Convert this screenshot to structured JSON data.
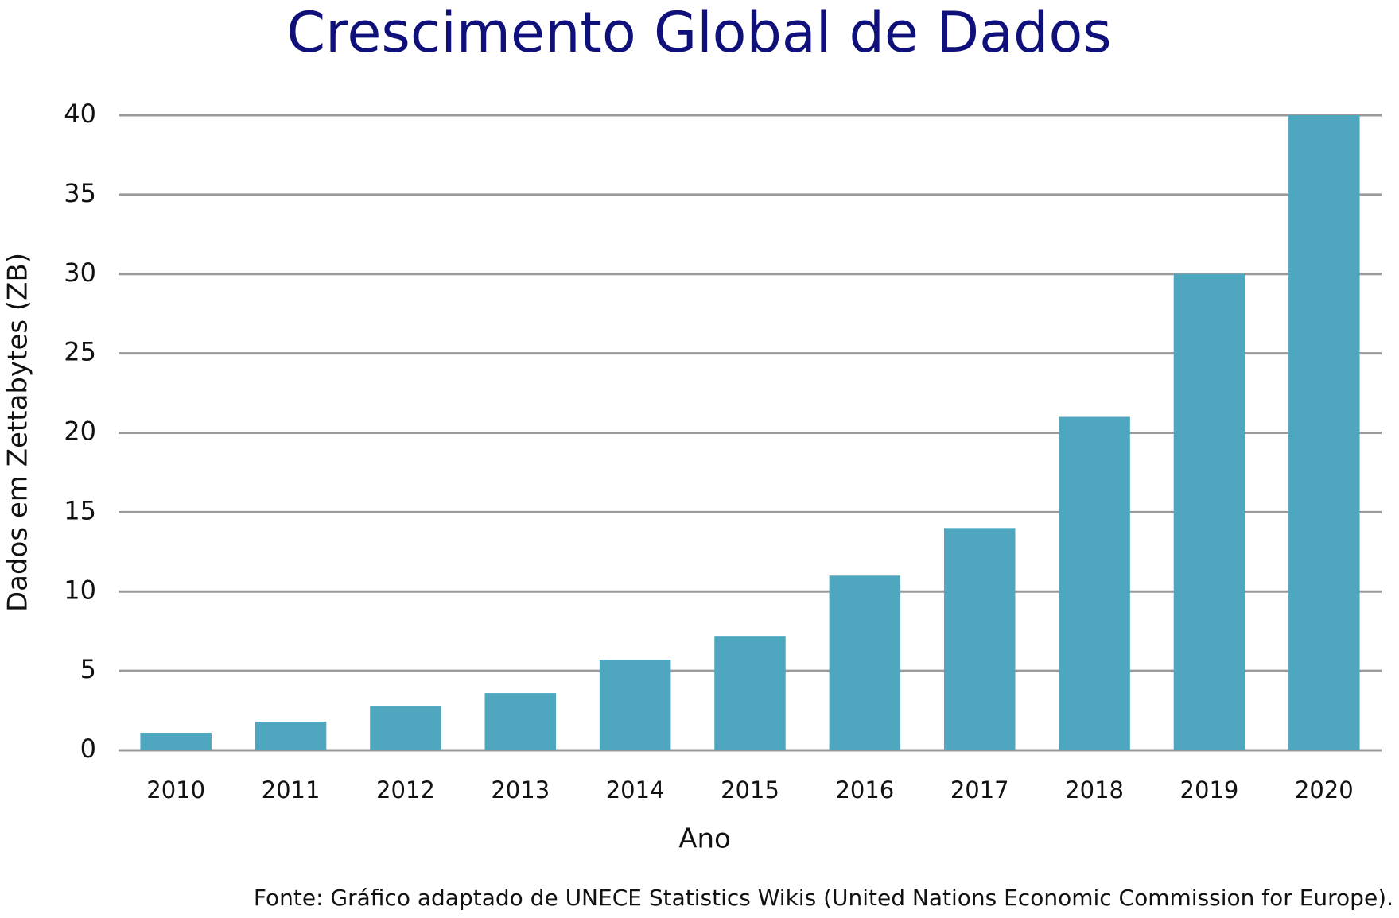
{
  "chart_data": {
    "type": "bar",
    "title": "Crescimento Global de Dados",
    "x_label": "Ano",
    "y_label": "Dados em Zettabytes (ZB)",
    "source": "Fonte: Gráfico adaptado de UNECE Statistics Wikis (United Nations Economic Commission for Europe).",
    "categories": [
      "2010",
      "2011",
      "2012",
      "2013",
      "2014",
      "2015",
      "2016",
      "2017",
      "2018",
      "2019",
      "2020"
    ],
    "values": [
      1.1,
      1.8,
      2.8,
      3.6,
      5.7,
      7.2,
      11,
      14,
      21,
      30,
      40
    ],
    "color": "#4ea7bf",
    "ylim": [
      0,
      40
    ],
    "yticks": [
      0,
      5,
      10,
      15,
      20,
      25,
      30,
      35,
      40
    ],
    "grid": true
  }
}
